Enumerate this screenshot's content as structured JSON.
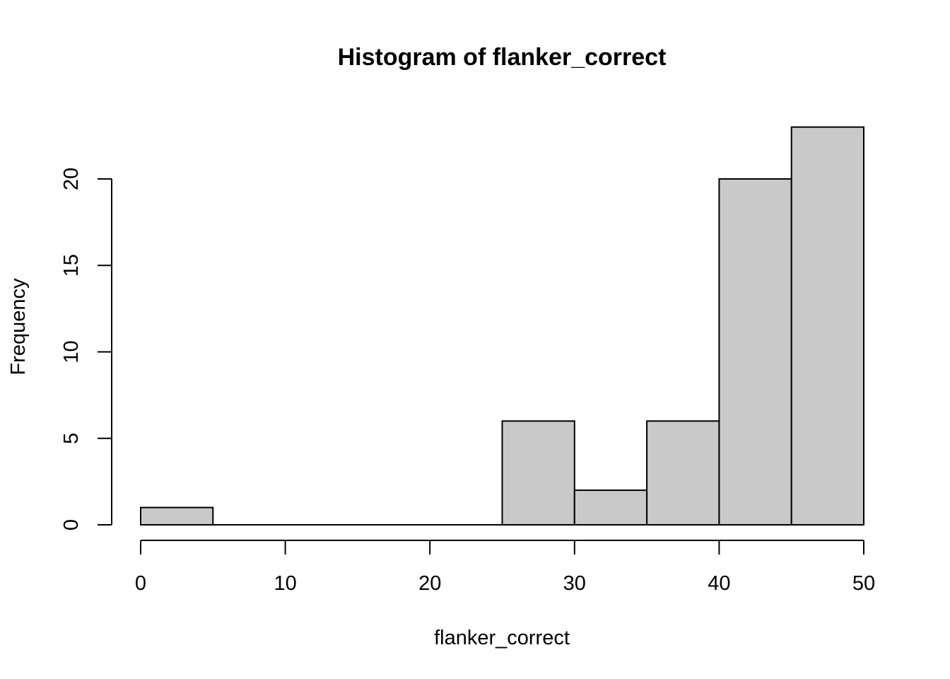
{
  "chart_data": {
    "type": "bar",
    "subtype": "histogram",
    "title": "Histogram of flanker_correct",
    "xlabel": "flanker_correct",
    "ylabel": "Frequency",
    "bins": [
      {
        "from": 0,
        "to": 5,
        "count": 1
      },
      {
        "from": 5,
        "to": 10,
        "count": 0
      },
      {
        "from": 10,
        "to": 15,
        "count": 0
      },
      {
        "from": 15,
        "to": 20,
        "count": 0
      },
      {
        "from": 20,
        "to": 25,
        "count": 0
      },
      {
        "from": 25,
        "to": 30,
        "count": 6
      },
      {
        "from": 30,
        "to": 35,
        "count": 2
      },
      {
        "from": 35,
        "to": 40,
        "count": 6
      },
      {
        "from": 40,
        "to": 45,
        "count": 20
      },
      {
        "from": 45,
        "to": 50,
        "count": 23
      }
    ],
    "xlim": [
      0,
      50
    ],
    "ylim": [
      0,
      23
    ],
    "x_ticks": [
      0,
      10,
      20,
      30,
      40,
      50
    ],
    "y_ticks": [
      0,
      5,
      10,
      15,
      20
    ],
    "bar_color": "#c9c9c9",
    "edge_color": "#000000",
    "grid": false,
    "legend": "none"
  }
}
